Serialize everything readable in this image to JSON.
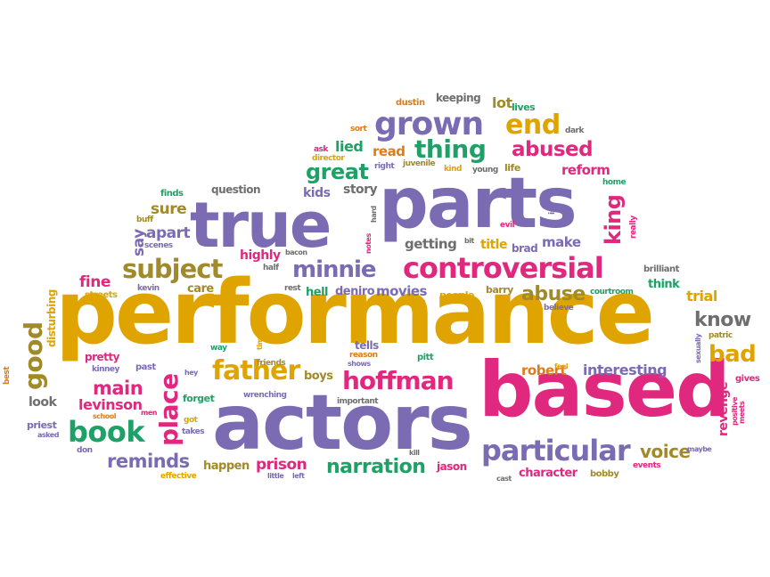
{
  "palette": {
    "yellow": "#e0a400",
    "purple": "#7a6bb3",
    "magenta": "#e0287e",
    "green": "#1fa067",
    "orange": "#de7c18",
    "gray": "#6e6e6e",
    "olive": "#a08a2a"
  },
  "words": [
    {
      "text": "performance",
      "color": "yellow"
    },
    {
      "text": "actors",
      "color": "purple"
    },
    {
      "text": "based",
      "color": "magenta"
    },
    {
      "text": "parts",
      "color": "purple"
    },
    {
      "text": "true",
      "color": "purple"
    },
    {
      "text": "controversial",
      "color": "magenta"
    },
    {
      "text": "particular",
      "color": "purple"
    },
    {
      "text": "grown",
      "color": "purple"
    },
    {
      "text": "book",
      "color": "green"
    },
    {
      "text": "father",
      "color": "yellow"
    },
    {
      "text": "subject",
      "color": "olive"
    },
    {
      "text": "place",
      "color": "magenta"
    },
    {
      "text": "hoffman",
      "color": "magenta"
    },
    {
      "text": "good",
      "color": "olive"
    },
    {
      "text": "thing",
      "color": "green"
    },
    {
      "text": "end",
      "color": "yellow"
    },
    {
      "text": "minnie",
      "color": "purple"
    },
    {
      "text": "narration",
      "color": "green"
    },
    {
      "text": "abused",
      "color": "magenta"
    },
    {
      "text": "great",
      "color": "green"
    },
    {
      "text": "bad",
      "color": "yellow"
    },
    {
      "text": "king",
      "color": "magenta"
    },
    {
      "text": "reminds",
      "color": "purple"
    },
    {
      "text": "abuse",
      "color": "olive"
    },
    {
      "text": "know",
      "color": "gray"
    },
    {
      "text": "voice",
      "color": "olive"
    },
    {
      "text": "main",
      "color": "magenta"
    },
    {
      "text": "interesting",
      "color": "purple"
    },
    {
      "text": "revenge",
      "color": "magenta"
    },
    {
      "text": "prison",
      "color": "magenta"
    },
    {
      "text": "levinson",
      "color": "magenta"
    },
    {
      "text": "fine",
      "color": "magenta"
    },
    {
      "text": "apart",
      "color": "purple"
    },
    {
      "text": "sure",
      "color": "olive"
    },
    {
      "text": "say",
      "color": "purple"
    },
    {
      "text": "robert",
      "color": "orange"
    },
    {
      "text": "reform",
      "color": "magenta"
    },
    {
      "text": "lied",
      "color": "green"
    },
    {
      "text": "read",
      "color": "orange"
    },
    {
      "text": "kids",
      "color": "purple"
    },
    {
      "text": "story",
      "color": "gray"
    },
    {
      "text": "getting",
      "color": "gray"
    },
    {
      "text": "title",
      "color": "yellow"
    },
    {
      "text": "brad",
      "color": "purple"
    },
    {
      "text": "make",
      "color": "purple"
    },
    {
      "text": "highly",
      "color": "magenta"
    },
    {
      "text": "care",
      "color": "olive"
    },
    {
      "text": "hell",
      "color": "green"
    },
    {
      "text": "deniro",
      "color": "purple"
    },
    {
      "text": "movies",
      "color": "purple"
    },
    {
      "text": "people",
      "color": "yellow"
    },
    {
      "text": "barry",
      "color": "olive"
    },
    {
      "text": "think",
      "color": "green"
    },
    {
      "text": "trial",
      "color": "yellow"
    },
    {
      "text": "boys",
      "color": "olive"
    },
    {
      "text": "tells",
      "color": "purple"
    },
    {
      "text": "pitt",
      "color": "green"
    },
    {
      "text": "jason",
      "color": "magenta"
    },
    {
      "text": "character",
      "color": "magenta"
    },
    {
      "text": "bobby",
      "color": "olive"
    },
    {
      "text": "happen",
      "color": "olive"
    },
    {
      "text": "question",
      "color": "gray"
    },
    {
      "text": "keeping",
      "color": "gray"
    },
    {
      "text": "lot",
      "color": "olive"
    },
    {
      "text": "lives",
      "color": "green"
    },
    {
      "text": "dustin",
      "color": "orange"
    },
    {
      "text": "sort",
      "color": "orange"
    },
    {
      "text": "dark",
      "color": "gray"
    },
    {
      "text": "ask",
      "color": "magenta"
    },
    {
      "text": "director",
      "color": "yellow"
    },
    {
      "text": "right",
      "color": "purple"
    },
    {
      "text": "juvenile",
      "color": "olive"
    },
    {
      "text": "kind",
      "color": "yellow"
    },
    {
      "text": "young",
      "color": "gray"
    },
    {
      "text": "life",
      "color": "olive"
    },
    {
      "text": "home",
      "color": "green"
    },
    {
      "text": "finds",
      "color": "green"
    },
    {
      "text": "buff",
      "color": "olive"
    },
    {
      "text": "scenes",
      "color": "purple"
    },
    {
      "text": "evil",
      "color": "magenta"
    },
    {
      "text": "ish",
      "color": "purple"
    },
    {
      "text": "brilliant",
      "color": "gray"
    },
    {
      "text": "really",
      "color": "magenta"
    },
    {
      "text": "half",
      "color": "gray"
    },
    {
      "text": "rest",
      "color": "gray"
    },
    {
      "text": "come",
      "color": "yellow"
    },
    {
      "text": "believe",
      "color": "purple"
    },
    {
      "text": "courtroom",
      "color": "green"
    },
    {
      "text": "streets",
      "color": "yellow"
    },
    {
      "text": "kevin",
      "color": "purple"
    },
    {
      "text": "way",
      "color": "green"
    },
    {
      "text": "time",
      "color": "yellow"
    },
    {
      "text": "reason",
      "color": "orange"
    },
    {
      "text": "shows",
      "color": "purple"
    },
    {
      "text": "important",
      "color": "gray"
    },
    {
      "text": "disturbing",
      "color": "yellow"
    },
    {
      "text": "pretty",
      "color": "magenta"
    },
    {
      "text": "kinney",
      "color": "purple"
    },
    {
      "text": "past",
      "color": "purple"
    },
    {
      "text": "hey",
      "color": "purple"
    },
    {
      "text": "friends",
      "color": "olive"
    },
    {
      "text": "forget",
      "color": "green"
    },
    {
      "text": "wrenching",
      "color": "purple"
    },
    {
      "text": "best",
      "color": "orange"
    },
    {
      "text": "look",
      "color": "gray"
    },
    {
      "text": "priest",
      "color": "purple"
    },
    {
      "text": "asked",
      "color": "purple"
    },
    {
      "text": "school",
      "color": "orange"
    },
    {
      "text": "men",
      "color": "magenta"
    },
    {
      "text": "got",
      "color": "yellow"
    },
    {
      "text": "takes",
      "color": "purple"
    },
    {
      "text": "don",
      "color": "purple"
    },
    {
      "text": "effective",
      "color": "yellow"
    },
    {
      "text": "little",
      "color": "purple"
    },
    {
      "text": "left",
      "color": "purple"
    },
    {
      "text": "kill",
      "color": "gray"
    },
    {
      "text": "cast",
      "color": "gray"
    },
    {
      "text": "events",
      "color": "magenta"
    },
    {
      "text": "maybe",
      "color": "purple"
    },
    {
      "text": "gives",
      "color": "magenta"
    },
    {
      "text": "meets",
      "color": "magenta"
    },
    {
      "text": "positive",
      "color": "magenta"
    },
    {
      "text": "feel",
      "color": "yellow"
    },
    {
      "text": "sexually",
      "color": "purple"
    },
    {
      "text": "patric",
      "color": "olive"
    },
    {
      "text": "notes",
      "color": "magenta"
    },
    {
      "text": "hard",
      "color": "gray"
    },
    {
      "text": "bit",
      "color": "gray"
    },
    {
      "text": "bacon",
      "color": "gray"
    }
  ]
}
